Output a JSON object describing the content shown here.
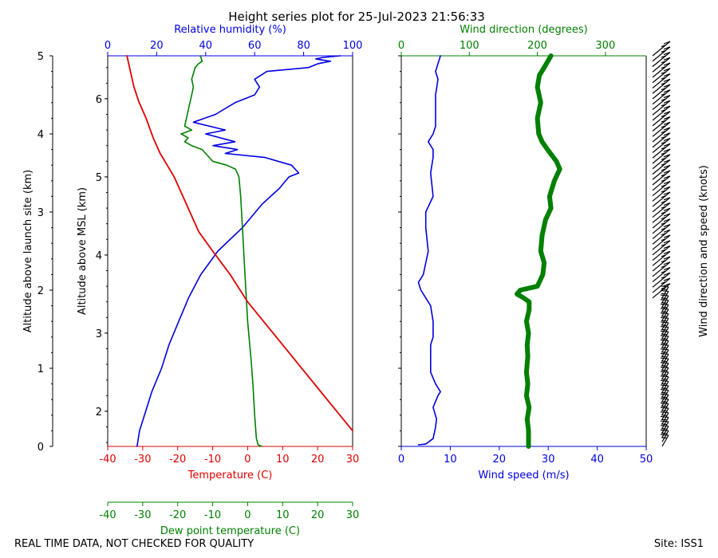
{
  "chart_data": [
    {
      "type": "line",
      "title": "Height series plot for 25-Jul-2023 21:56:33",
      "footer_left": "REAL TIME DATA, NOT CHECKED FOR QUALITY",
      "footer_right": "Site: ISS1",
      "ylabel_launch": "Altitude above launch site (km)",
      "ylabel_msl": "Altitude above MSL (km)",
      "ylim_km": [
        0,
        5
      ],
      "yticks_launch": [
        0,
        1,
        2,
        3,
        4,
        5
      ],
      "yticks_msl": [
        2,
        3,
        4,
        5,
        6
      ],
      "site_elevation_km": 1.55,
      "temperature": {
        "xlabel": "Temperature (C)",
        "color": "#e00000",
        "xlim": [
          -40,
          30
        ],
        "ticks": [
          -40,
          -30,
          -20,
          -10,
          0,
          10,
          20,
          30
        ],
        "points": [
          [
            30,
            0.2
          ],
          [
            20,
            0.75
          ],
          [
            10,
            1.3
          ],
          [
            0,
            1.85
          ],
          [
            -5,
            2.2
          ],
          [
            -10,
            2.5
          ],
          [
            -14,
            2.75
          ],
          [
            -17,
            3.05
          ],
          [
            -21,
            3.45
          ],
          [
            -23,
            3.6
          ],
          [
            -25,
            3.75
          ],
          [
            -27,
            3.95
          ],
          [
            -29,
            4.2
          ],
          [
            -31,
            4.4
          ],
          [
            -32.5,
            4.6
          ],
          [
            -33.5,
            4.8
          ],
          [
            -34.5,
            5.0
          ]
        ]
      },
      "dewpoint": {
        "xlabel": "Dew point temperature (C)",
        "color": "#008000",
        "xlim": [
          -40,
          30
        ],
        "ticks": [
          -40,
          -30,
          -20,
          -10,
          0,
          10,
          20,
          30
        ],
        "points": [
          [
            4,
            0.0
          ],
          [
            3,
            0.02
          ],
          [
            2.5,
            0.1
          ],
          [
            2,
            0.4
          ],
          [
            1.5,
            0.8
          ],
          [
            1,
            1.1
          ],
          [
            0,
            1.6
          ],
          [
            -0.5,
            2.0
          ],
          [
            -1,
            2.4
          ],
          [
            -1.5,
            2.8
          ],
          [
            -2,
            3.2
          ],
          [
            -2.5,
            3.45
          ],
          [
            -3.5,
            3.55
          ],
          [
            -6,
            3.6
          ],
          [
            -10,
            3.65
          ],
          [
            -11,
            3.7
          ],
          [
            -13,
            3.8
          ],
          [
            -16,
            3.85
          ],
          [
            -18,
            3.9
          ],
          [
            -17,
            3.95
          ],
          [
            -19,
            4.0
          ],
          [
            -16,
            4.05
          ],
          [
            -18,
            4.1
          ],
          [
            -17,
            4.3
          ],
          [
            -16,
            4.5
          ],
          [
            -15.5,
            4.6
          ],
          [
            -16,
            4.7
          ],
          [
            -15,
            4.85
          ],
          [
            -14,
            4.9
          ],
          [
            -13,
            4.93
          ],
          [
            -13.5,
            5.0
          ]
        ]
      },
      "relative_humidity": {
        "xlabel": "Relative humidity (%)",
        "color": "#0000e0",
        "xlim": [
          0,
          100
        ],
        "ticks": [
          0,
          20,
          40,
          60,
          80,
          100
        ],
        "points": [
          [
            12,
            0.0
          ],
          [
            13,
            0.2
          ],
          [
            15,
            0.4
          ],
          [
            18,
            0.7
          ],
          [
            22,
            1.0
          ],
          [
            25,
            1.3
          ],
          [
            29,
            1.6
          ],
          [
            33,
            1.9
          ],
          [
            38,
            2.2
          ],
          [
            45,
            2.5
          ],
          [
            55,
            2.8
          ],
          [
            63,
            3.1
          ],
          [
            70,
            3.3
          ],
          [
            74,
            3.45
          ],
          [
            78,
            3.5
          ],
          [
            75,
            3.6
          ],
          [
            64,
            3.7
          ],
          [
            48,
            3.75
          ],
          [
            53,
            3.8
          ],
          [
            43,
            3.85
          ],
          [
            52,
            3.9
          ],
          [
            40,
            4.0
          ],
          [
            48,
            4.05
          ],
          [
            35,
            4.15
          ],
          [
            44,
            4.25
          ],
          [
            52,
            4.4
          ],
          [
            60,
            4.5
          ],
          [
            62,
            4.6
          ],
          [
            60,
            4.7
          ],
          [
            65,
            4.8
          ],
          [
            82,
            4.85
          ],
          [
            86,
            4.9
          ],
          [
            91,
            4.93
          ],
          [
            85,
            4.96
          ],
          [
            88,
            4.98
          ],
          [
            95,
            5.0
          ]
        ]
      }
    },
    {
      "type": "line",
      "ylabel_right": "Wind direction and speed (knots)",
      "ylim_km": [
        0,
        5
      ],
      "wind_speed": {
        "xlabel": "Wind speed (m/s)",
        "color": "#0000e0",
        "xlim": [
          0,
          50
        ],
        "ticks": [
          0,
          10,
          20,
          30,
          40,
          50
        ],
        "points": [
          [
            3.5,
            0.02
          ],
          [
            5,
            0.03
          ],
          [
            6.5,
            0.1
          ],
          [
            7,
            0.25
          ],
          [
            7.2,
            0.35
          ],
          [
            6.5,
            0.5
          ],
          [
            7.5,
            0.65
          ],
          [
            8,
            0.7
          ],
          [
            7,
            0.8
          ],
          [
            6,
            0.95
          ],
          [
            6,
            1.1
          ],
          [
            6,
            1.3
          ],
          [
            6.5,
            1.4
          ],
          [
            6.5,
            1.6
          ],
          [
            6,
            1.8
          ],
          [
            5,
            1.9
          ],
          [
            4,
            2.0
          ],
          [
            3.5,
            2.1
          ],
          [
            4.5,
            2.2
          ],
          [
            5.5,
            2.5
          ],
          [
            5,
            2.8
          ],
          [
            5,
            3.0
          ],
          [
            6.5,
            3.2
          ],
          [
            6,
            3.5
          ],
          [
            6.5,
            3.7
          ],
          [
            6.5,
            3.8
          ],
          [
            5.5,
            3.9
          ],
          [
            6.5,
            4.0
          ],
          [
            7,
            4.1
          ],
          [
            7,
            4.3
          ],
          [
            7,
            4.5
          ],
          [
            7.5,
            4.7
          ],
          [
            7,
            4.8
          ],
          [
            7.5,
            4.9
          ],
          [
            8,
            5.0
          ]
        ]
      },
      "wind_direction": {
        "xlabel": "Wind direction (degrees)",
        "color": "#008000",
        "xlim": [
          0,
          360
        ],
        "ticks": [
          0,
          100,
          200,
          300
        ],
        "points": [
          [
            187,
            0.0
          ],
          [
            187,
            0.2
          ],
          [
            185,
            0.35
          ],
          [
            188,
            0.5
          ],
          [
            184,
            0.65
          ],
          [
            186,
            0.8
          ],
          [
            184,
            0.95
          ],
          [
            186,
            1.15
          ],
          [
            185,
            1.3
          ],
          [
            187,
            1.45
          ],
          [
            184,
            1.6
          ],
          [
            188,
            1.75
          ],
          [
            188,
            1.85
          ],
          [
            180,
            1.9
          ],
          [
            170,
            1.95
          ],
          [
            175,
            2.0
          ],
          [
            200,
            2.05
          ],
          [
            208,
            2.2
          ],
          [
            210,
            2.35
          ],
          [
            205,
            2.5
          ],
          [
            207,
            2.7
          ],
          [
            212,
            2.9
          ],
          [
            220,
            3.05
          ],
          [
            218,
            3.2
          ],
          [
            225,
            3.4
          ],
          [
            233,
            3.55
          ],
          [
            228,
            3.65
          ],
          [
            215,
            3.8
          ],
          [
            207,
            3.9
          ],
          [
            202,
            4.0
          ],
          [
            200,
            4.2
          ],
          [
            205,
            4.4
          ],
          [
            200,
            4.6
          ],
          [
            203,
            4.75
          ],
          [
            210,
            4.85
          ],
          [
            220,
            5.0
          ]
        ]
      },
      "barbs": {
        "color": "#000000",
        "lower": {
          "from_km": 0.0,
          "to_km": 1.9,
          "count": 34
        },
        "upper": {
          "from_km": 1.9,
          "to_km": 5.0,
          "count": 46
        }
      }
    }
  ]
}
